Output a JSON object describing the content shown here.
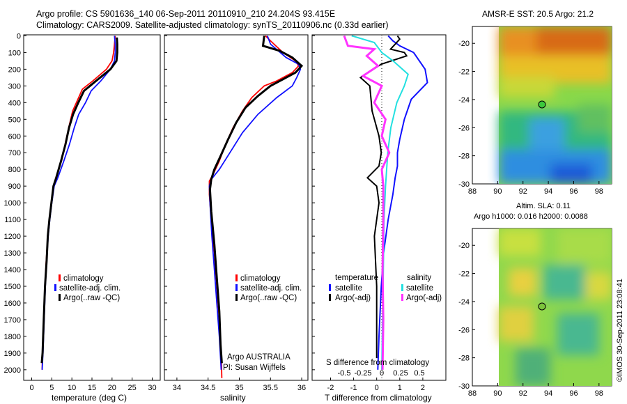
{
  "header": {
    "line1": "Argo profile: CS 5901636_140 06-Sep-2011 20110910_210 24.204S 93.415E",
    "line2": "Climatology: CARS2009. Satellite-adjusted climatology: synTS_20110906.nc (0.33d earlier)"
  },
  "depth_ticks": [
    "0",
    "100",
    "200",
    "300",
    "400",
    "500",
    "600",
    "700",
    "800",
    "900",
    "1000",
    "1100",
    "1200",
    "1300",
    "1400",
    "1500",
    "1600",
    "1700",
    "1800",
    "1900",
    "2000"
  ],
  "colors": {
    "climatology": "#ff0000",
    "satellite": "#1010ff",
    "argo": "#000000",
    "sal_satellite": "#22e0e0",
    "sal_argo": "#ff33ff"
  },
  "panel_temp": {
    "xlabel": "temperature (deg C)",
    "ticks": [
      "0",
      "5",
      "10",
      "15",
      "20",
      "25",
      "30"
    ],
    "legend": [
      "climatology",
      "satellite-adj. clim.",
      "Argo(..raw -QC)"
    ]
  },
  "panel_sal": {
    "xlabel": "salinity",
    "ticks": [
      "34",
      "34.5",
      "35",
      "35.5",
      "36"
    ],
    "legend": [
      "climatology",
      "satellite-adj. clim.",
      "Argo(..raw -QC)"
    ],
    "note1": "Argo AUSTRALIA",
    "note2": "PI: Susan Wijffels"
  },
  "panel_diff": {
    "xlabel": "T difference from climatology",
    "top_label": "S difference from climatology",
    "t_ticks": [
      "-2",
      "-1",
      "0",
      "1",
      "2"
    ],
    "s_ticks": [
      "-0.5",
      "-0.25",
      "0",
      "0.25",
      "0.5"
    ],
    "legend_temp_title": "temperature",
    "legend_sal_title": "salinity",
    "legend_temp": [
      "satellite",
      "Argo(-adj)"
    ],
    "legend_sal": [
      "satellite",
      "Argo(-adj)"
    ]
  },
  "map_sst": {
    "title": "AMSR-E SST: 20.5  Argo: 21.2",
    "yticks": [
      "-20",
      "-22",
      "-24",
      "-26",
      "-28",
      "-30"
    ],
    "xticks": [
      "88",
      "90",
      "92",
      "94",
      "96",
      "98"
    ]
  },
  "map_sla": {
    "title1": "Altim. SLA: 0.11",
    "title2": "Argo h1000: 0.016 h2000: 0.0088",
    "yticks": [
      "-20",
      "-22",
      "-24",
      "-26",
      "-28",
      "-30"
    ],
    "xticks": [
      "88",
      "90",
      "92",
      "94",
      "96",
      "98"
    ]
  },
  "stamp": "©IMOS 30-Sep-2011 23:08:41",
  "chart_data": [
    {
      "type": "line",
      "xlabel": "temperature (deg C)",
      "ylabel": "",
      "xlim": [
        -2,
        32
      ],
      "ylim": [
        2050,
        0
      ],
      "series": [
        {
          "name": "climatology",
          "points": [
            [
              20.8,
              0
            ],
            [
              20.6,
              50
            ],
            [
              20.4,
              100
            ],
            [
              20.0,
              150
            ],
            [
              18.6,
              200
            ],
            [
              15.2,
              270
            ],
            [
              12.6,
              320
            ],
            [
              11.5,
              380
            ],
            [
              10.2,
              450
            ],
            [
              9.2,
              550
            ],
            [
              8.3,
              650
            ],
            [
              7.4,
              750
            ],
            [
              6.0,
              850
            ],
            [
              5.4,
              900
            ],
            [
              4.9,
              1000
            ],
            [
              4.4,
              1100
            ],
            [
              4.0,
              1200
            ],
            [
              3.6,
              1350
            ],
            [
              3.3,
              1500
            ],
            [
              3.0,
              1700
            ],
            [
              2.7,
              1900
            ],
            [
              2.6,
              2000
            ]
          ]
        },
        {
          "name": "satellite-adj. clim.",
          "points": [
            [
              20.6,
              0
            ],
            [
              20.8,
              50
            ],
            [
              20.8,
              100
            ],
            [
              20.6,
              150
            ],
            [
              19.6,
              200
            ],
            [
              17.2,
              270
            ],
            [
              14.8,
              330
            ],
            [
              13.4,
              400
            ],
            [
              11.7,
              470
            ],
            [
              10.6,
              550
            ],
            [
              9.4,
              650
            ],
            [
              8.0,
              750
            ],
            [
              6.5,
              850
            ],
            [
              5.6,
              900
            ],
            [
              5.0,
              1000
            ],
            [
              4.5,
              1100
            ],
            [
              4.1,
              1200
            ],
            [
              3.7,
              1350
            ],
            [
              3.4,
              1500
            ],
            [
              3.1,
              1700
            ],
            [
              2.8,
              1900
            ],
            [
              2.6,
              2000
            ]
          ]
        },
        {
          "name": "Argo(..raw -QC)",
          "points": [
            [
              21.2,
              10
            ],
            [
              21.3,
              50
            ],
            [
              21.3,
              100
            ],
            [
              21.1,
              150
            ],
            [
              19.6,
              200
            ],
            [
              16.0,
              270
            ],
            [
              13.0,
              330
            ],
            [
              11.6,
              400
            ],
            [
              10.3,
              470
            ],
            [
              9.3,
              550
            ],
            [
              8.4,
              650
            ],
            [
              7.3,
              750
            ],
            [
              6.1,
              850
            ],
            [
              5.4,
              900
            ],
            [
              4.9,
              1000
            ],
            [
              4.4,
              1100
            ],
            [
              4.0,
              1200
            ],
            [
              3.7,
              1350
            ],
            [
              3.3,
              1500
            ],
            [
              3.0,
              1700
            ],
            [
              2.7,
              1900
            ],
            [
              2.5,
              1960
            ]
          ]
        }
      ]
    },
    {
      "type": "line",
      "xlabel": "salinity",
      "ylabel": "",
      "xlim": [
        33.8,
        36.1
      ],
      "ylim": [
        2050,
        0
      ],
      "series": [
        {
          "name": "climatology",
          "points": [
            [
              35.42,
              0
            ],
            [
              35.5,
              30
            ],
            [
              35.7,
              100
            ],
            [
              35.9,
              150
            ],
            [
              35.95,
              180
            ],
            [
              35.85,
              220
            ],
            [
              35.6,
              270
            ],
            [
              35.4,
              300
            ],
            [
              35.2,
              370
            ],
            [
              35.05,
              450
            ],
            [
              34.9,
              550
            ],
            [
              34.78,
              650
            ],
            [
              34.68,
              750
            ],
            [
              34.58,
              830
            ],
            [
              34.52,
              870
            ],
            [
              34.52,
              950
            ],
            [
              34.55,
              1100
            ],
            [
              34.6,
              1300
            ],
            [
              34.64,
              1500
            ],
            [
              34.68,
              1700
            ],
            [
              34.71,
              1900
            ],
            [
              34.72,
              2050
            ]
          ]
        },
        {
          "name": "satellite-adj. clim.",
          "points": [
            [
              35.45,
              0
            ],
            [
              35.5,
              50
            ],
            [
              35.75,
              130
            ],
            [
              35.95,
              170
            ],
            [
              35.98,
              200
            ],
            [
              35.92,
              250
            ],
            [
              35.85,
              300
            ],
            [
              35.6,
              370
            ],
            [
              35.3,
              470
            ],
            [
              35.05,
              580
            ],
            [
              34.85,
              700
            ],
            [
              34.68,
              800
            ],
            [
              34.55,
              860
            ],
            [
              34.52,
              900
            ],
            [
              34.53,
              1000
            ],
            [
              34.56,
              1200
            ],
            [
              34.6,
              1400
            ],
            [
              34.64,
              1600
            ],
            [
              34.68,
              1800
            ],
            [
              34.71,
              2000
            ]
          ]
        },
        {
          "name": "Argo(..raw -QC)",
          "points": [
            [
              35.4,
              0
            ],
            [
              35.38,
              60
            ],
            [
              35.65,
              90
            ],
            [
              35.85,
              130
            ],
            [
              36.0,
              180
            ],
            [
              35.9,
              220
            ],
            [
              35.7,
              260
            ],
            [
              35.5,
              300
            ],
            [
              35.3,
              360
            ],
            [
              35.1,
              430
            ],
            [
              34.95,
              520
            ],
            [
              34.82,
              620
            ],
            [
              34.7,
              720
            ],
            [
              34.6,
              800
            ],
            [
              34.55,
              860
            ],
            [
              34.53,
              920
            ],
            [
              34.55,
              1050
            ],
            [
              34.6,
              1250
            ],
            [
              34.64,
              1450
            ],
            [
              34.68,
              1650
            ],
            [
              34.7,
              1850
            ],
            [
              34.72,
              1960
            ]
          ]
        }
      ]
    },
    {
      "type": "line",
      "xlabel": "T difference from climatology",
      "x2label": "S difference from climatology",
      "xlim": [
        -2.8,
        3.0
      ],
      "ylim": [
        2050,
        0
      ],
      "series": [
        {
          "name": "satellite",
          "variable": "temperature",
          "points": [
            [
              0.5,
              0
            ],
            [
              0.7,
              30
            ],
            [
              1.0,
              60
            ],
            [
              1.6,
              100
            ],
            [
              2.1,
              200
            ],
            [
              2.2,
              280
            ],
            [
              1.5,
              380
            ],
            [
              1.2,
              500
            ],
            [
              1.0,
              620
            ],
            [
              0.9,
              700
            ],
            [
              0.9,
              780
            ],
            [
              0.8,
              850
            ],
            [
              0.7,
              950
            ],
            [
              0.5,
              1100
            ],
            [
              0.3,
              1300
            ],
            [
              0.2,
              1500
            ],
            [
              0.1,
              1800
            ],
            [
              0.05,
              2000
            ]
          ]
        },
        {
          "name": "Argo(-adj)",
          "variable": "temperature",
          "points": [
            [
              0.9,
              0
            ],
            [
              1.0,
              20
            ],
            [
              0.8,
              50
            ],
            [
              0.6,
              80
            ],
            [
              1.2,
              100
            ],
            [
              1.3,
              120
            ],
            [
              0.2,
              170
            ],
            [
              -0.7,
              250
            ],
            [
              -0.3,
              300
            ],
            [
              -0.2,
              450
            ],
            [
              0.1,
              600
            ],
            [
              0.2,
              700
            ],
            [
              0.1,
              780
            ],
            [
              -0.4,
              850
            ],
            [
              0.0,
              900
            ],
            [
              0.1,
              1000
            ],
            [
              -0.1,
              1200
            ],
            [
              0.0,
              1500
            ],
            [
              0.0,
              1800
            ],
            [
              0.0,
              1930
            ]
          ]
        },
        {
          "name": "satellite",
          "variable": "salinity",
          "points": [
            [
              -0.4,
              0
            ],
            [
              -0.1,
              40
            ],
            [
              0.0,
              100
            ],
            [
              0.15,
              150
            ],
            [
              0.35,
              230
            ],
            [
              0.3,
              300
            ],
            [
              0.2,
              400
            ],
            [
              0.12,
              550
            ],
            [
              0.08,
              700
            ],
            [
              0.05,
              900
            ],
            [
              0.03,
              1100
            ],
            [
              0.02,
              1400
            ],
            [
              0.01,
              1700
            ],
            [
              0.0,
              2000
            ]
          ]
        },
        {
          "name": "Argo(-adj)",
          "variable": "salinity",
          "points": [
            [
              -0.5,
              0
            ],
            [
              -0.45,
              60
            ],
            [
              -0.1,
              80
            ],
            [
              -0.2,
              120
            ],
            [
              -0.05,
              180
            ],
            [
              -0.25,
              240
            ],
            [
              0.0,
              300
            ],
            [
              -0.1,
              400
            ],
            [
              0.05,
              500
            ],
            [
              0.0,
              600
            ],
            [
              0.1,
              700
            ],
            [
              0.0,
              800
            ],
            [
              0.02,
              900
            ],
            [
              0.02,
              1100
            ],
            [
              0.01,
              1400
            ],
            [
              0.02,
              1700
            ],
            [
              0.01,
              2000
            ]
          ]
        }
      ]
    },
    {
      "type": "heatmap",
      "title": "AMSR-E SST: 20.5  Argo: 21.2",
      "xlim": [
        88,
        99
      ],
      "ylim": [
        -30,
        -18.8
      ],
      "marker": {
        "lon": 93.415,
        "lat": -24.204
      }
    },
    {
      "type": "heatmap",
      "title": "Altim. SLA: 0.11",
      "xlim": [
        88,
        99
      ],
      "ylim": [
        -30,
        -18.8
      ],
      "marker": {
        "lon": 93.415,
        "lat": -24.204
      }
    }
  ]
}
